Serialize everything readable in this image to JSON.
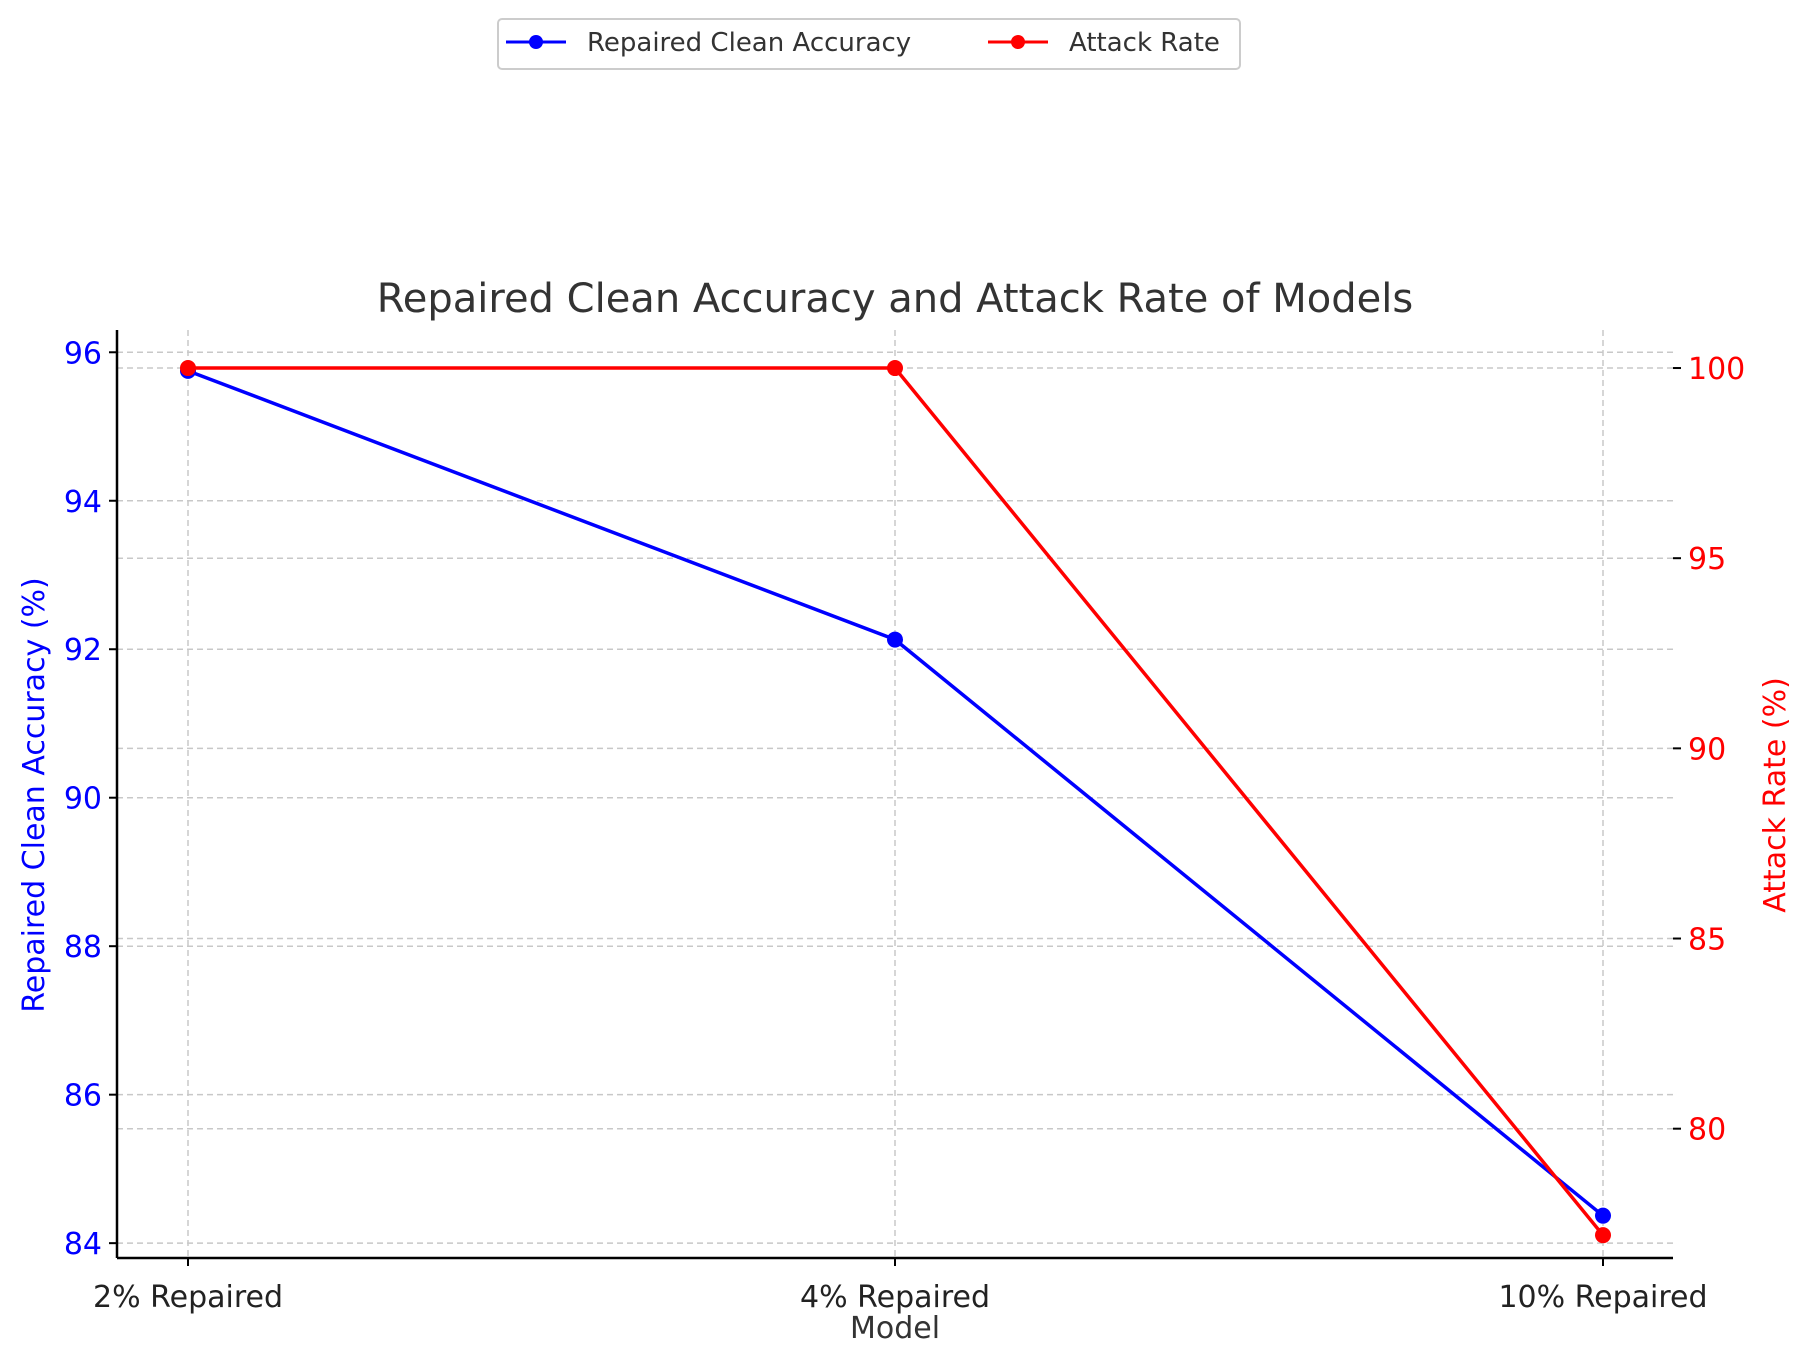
{
  "chart_data": {
    "type": "line",
    "title": "Repaired Clean Accuracy and Attack Rate of Models",
    "xlabel": "Model",
    "categories": [
      "2% Repaired",
      "4% Repaired",
      "10% Repaired"
    ],
    "y_left": {
      "label": "Repaired Clean Accuracy (%)",
      "ylim": [
        83.8,
        96.3
      ],
      "ticks": [
        84,
        86,
        88,
        90,
        92,
        94,
        96
      ],
      "color": "#0000ff"
    },
    "y_right": {
      "label": "Attack Rate (%)",
      "ylim": [
        76.6,
        101.0
      ],
      "ticks": [
        80,
        85,
        90,
        95,
        100
      ],
      "color": "#ff0000"
    },
    "series": [
      {
        "name": "Repaired Clean Accuracy",
        "axis": "left",
        "color": "#0000ff",
        "values": [
          95.75,
          92.13,
          84.37
        ]
      },
      {
        "name": "Attack Rate",
        "axis": "right",
        "color": "#ff0000",
        "values": [
          100.0,
          100.0,
          77.2
        ]
      }
    ],
    "grid": true,
    "legend": "top-center"
  }
}
